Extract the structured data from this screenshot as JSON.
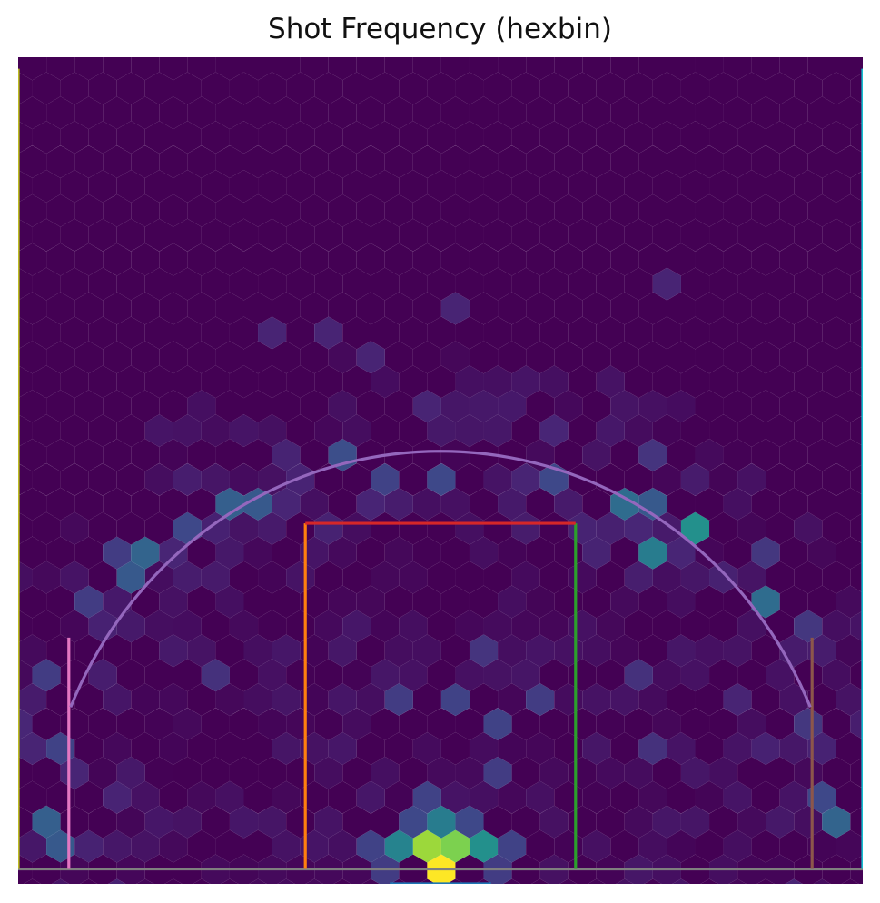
{
  "chart_data": {
    "type": "heatmap",
    "title": "Shot Frequency (hexbin)",
    "xlabel": "",
    "ylabel": "",
    "xlim": [
      -250,
      250
    ],
    "ylim": [
      -47.5,
      422.5
    ],
    "axis": "off",
    "grid": false,
    "colormap": "viridis",
    "colormap_colors": [
      "#440154",
      "#482878",
      "#3e4989",
      "#31688e",
      "#26828e",
      "#1f9e89",
      "#35b779",
      "#6ece58",
      "#b5de2b",
      "#fde725"
    ],
    "hex_spacing_x": 16.7,
    "hex_row_spacing": 13.9,
    "x_origin": -250,
    "y_origin": -40,
    "bins": [
      {
        "x": 0,
        "y": -35,
        "v": 1.0
      },
      {
        "x": -8,
        "y": -21,
        "v": 0.85
      },
      {
        "x": 8,
        "y": -21,
        "v": 0.8
      },
      {
        "x": -25,
        "y": -21,
        "v": 0.45
      },
      {
        "x": 25,
        "y": -21,
        "v": 0.5
      },
      {
        "x": 0,
        "y": -7,
        "v": 0.42
      },
      {
        "x": -16.7,
        "y": -7,
        "v": 0.22
      },
      {
        "x": 16.7,
        "y": -7,
        "v": 0.22
      },
      {
        "x": -33.4,
        "y": -35,
        "v": 0.18
      },
      {
        "x": 33.4,
        "y": -35,
        "v": 0.18
      },
      {
        "x": -42,
        "y": -21,
        "v": 0.2
      },
      {
        "x": 42,
        "y": -21,
        "v": 0.2
      },
      {
        "x": 125,
        "y": 147,
        "v": 0.42
      },
      {
        "x": 117,
        "y": 175,
        "v": 0.35
      },
      {
        "x": 192,
        "y": 119,
        "v": 0.35
      },
      {
        "x": 158,
        "y": 161,
        "v": 0.5
      },
      {
        "x": -167,
        "y": 147,
        "v": 0.32
      },
      {
        "x": -175,
        "y": 133,
        "v": 0.28
      },
      {
        "x": -125,
        "y": 175,
        "v": 0.3
      },
      {
        "x": -108,
        "y": 175,
        "v": 0.28
      },
      {
        "x": -58,
        "y": 203,
        "v": 0.24
      },
      {
        "x": -233,
        "y": -7,
        "v": 0.3
      },
      {
        "x": -233,
        "y": -21,
        "v": 0.28
      },
      {
        "x": 233,
        "y": -7,
        "v": 0.32
      },
      {
        "x": 233,
        "y": 7,
        "v": 0.22
      },
      {
        "x": -42,
        "y": 245,
        "v": 0.1
      },
      {
        "x": 0,
        "y": 231,
        "v": 0.1
      },
      {
        "x": 133,
        "y": 175,
        "v": 0.28
      },
      {
        "x": -150,
        "y": 161,
        "v": 0.22
      },
      {
        "x": 67,
        "y": 189,
        "v": 0.22
      },
      {
        "x": -33,
        "y": 189,
        "v": 0.2
      },
      {
        "x": 8,
        "y": 189,
        "v": 0.22
      },
      {
        "x": 133,
        "y": 203,
        "v": 0.15
      },
      {
        "x": -8,
        "y": 7,
        "v": 0.2
      },
      {
        "x": 33,
        "y": 21,
        "v": 0.18
      },
      {
        "x": 33,
        "y": 49,
        "v": 0.2
      },
      {
        "x": 8,
        "y": 63,
        "v": 0.2
      },
      {
        "x": -25,
        "y": 63,
        "v": 0.18
      },
      {
        "x": 58,
        "y": 63,
        "v": 0.18
      },
      {
        "x": 33,
        "y": 91,
        "v": 0.15
      },
      {
        "x": -125,
        "y": 77,
        "v": 0.14
      },
      {
        "x": 117,
        "y": 77,
        "v": 0.14
      },
      {
        "x": 133,
        "y": 35,
        "v": 0.14
      },
      {
        "x": -233,
        "y": 35,
        "v": 0.2
      },
      {
        "x": 225,
        "y": 49,
        "v": 0.16
      },
      {
        "x": -225,
        "y": 77,
        "v": 0.18
      },
      {
        "x": -208,
        "y": 119,
        "v": 0.18
      },
      {
        "x": -192,
        "y": 147,
        "v": 0.18
      },
      {
        "x": 200,
        "y": 147,
        "v": 0.16
      },
      {
        "x": 217,
        "y": 105,
        "v": 0.16
      },
      {
        "x": 133,
        "y": 287,
        "v": 0.1
      },
      {
        "x": -108,
        "y": 259,
        "v": 0.1
      },
      {
        "x": -58,
        "y": 259,
        "v": 0.1
      },
      {
        "x": 8,
        "y": 273,
        "v": 0.1
      }
    ],
    "overlays": [
      {
        "kind": "line",
        "color": "#1f77b4",
        "points": [
          [
            -30,
            -47.5
          ],
          [
            30,
            -47.5
          ]
        ]
      },
      {
        "kind": "line",
        "color": "#7f7f7f",
        "points": [
          [
            -250,
            -39
          ],
          [
            250,
            -39
          ]
        ]
      },
      {
        "kind": "line",
        "color": "#ff7f0e",
        "points": [
          [
            -80,
            -39
          ],
          [
            -80,
            157.5
          ]
        ]
      },
      {
        "kind": "line",
        "color": "#2ca02c",
        "points": [
          [
            80,
            -39
          ],
          [
            80,
            157.5
          ]
        ]
      },
      {
        "kind": "line",
        "color": "#d62728",
        "points": [
          [
            -80,
            157.5
          ],
          [
            80,
            157.5
          ]
        ]
      },
      {
        "kind": "line",
        "color": "#e377c2",
        "points": [
          [
            -220,
            -39
          ],
          [
            -220,
            92.5
          ]
        ]
      },
      {
        "kind": "line",
        "color": "#8c564b",
        "points": [
          [
            220,
            -39
          ],
          [
            220,
            92.5
          ]
        ]
      },
      {
        "kind": "line",
        "color": "#bcbd22",
        "points": [
          [
            -250,
            -39
          ],
          [
            -250,
            416
          ]
        ]
      },
      {
        "kind": "line",
        "color": "#17becf",
        "points": [
          [
            250,
            -39
          ],
          [
            250,
            416
          ]
        ]
      },
      {
        "kind": "arc",
        "color": "#9467bd",
        "center": [
          0,
          -39
        ],
        "radius": 237.5,
        "start_deg": 22.8,
        "end_deg": 157.2
      }
    ]
  }
}
